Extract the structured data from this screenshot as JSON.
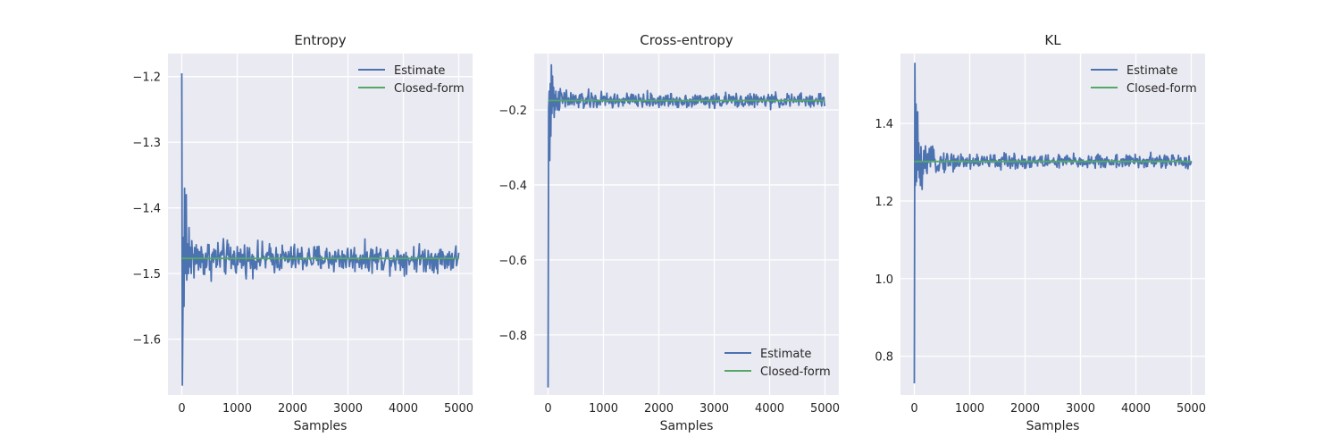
{
  "chart_data": [
    {
      "type": "line",
      "title": "Entropy",
      "xlabel": "Samples",
      "ylabel": "",
      "xlim": [
        -250,
        5250
      ],
      "ylim": [
        -1.685,
        -1.165
      ],
      "xticks": [
        0,
        1000,
        2000,
        3000,
        4000,
        5000
      ],
      "xtick_labels": [
        "0",
        "1000",
        "2000",
        "3000",
        "4000",
        "5000"
      ],
      "yticks": [
        -1.6,
        -1.5,
        -1.4,
        -1.3,
        -1.2
      ],
      "ytick_labels": [
        "−1.6",
        "−1.5",
        "−1.4",
        "−1.3",
        "−1.2"
      ],
      "grid": true,
      "legend": "top-right",
      "n_points": 500,
      "series": [
        {
          "name": "Estimate",
          "values": [
            -1.195,
            -1.67,
            -1.56,
            -1.445,
            -1.55,
            -1.37,
            -1.5,
            -1.46,
            -1.38,
            -1.51,
            -1.47,
            -1.455,
            -1.5,
            -1.43,
            -1.49,
            -1.46,
            -1.48,
            -1.5,
            -1.45,
            -1.47
          ],
          "noise": 0.055,
          "decay": 0.45,
          "color": "#4c72b0"
        },
        {
          "name": "Closed-form",
          "constant": -1.477,
          "color": "#55a868"
        }
      ]
    },
    {
      "type": "line",
      "title": "Cross-entropy",
      "xlabel": "Samples",
      "ylabel": "",
      "xlim": [
        -250,
        5250
      ],
      "ylim": [
        -0.96,
        -0.05
      ],
      "xticks": [
        0,
        1000,
        2000,
        3000,
        4000,
        5000
      ],
      "xtick_labels": [
        "0",
        "1000",
        "2000",
        "3000",
        "4000",
        "5000"
      ],
      "yticks": [
        -0.8,
        -0.6,
        -0.4,
        -0.2
      ],
      "ytick_labels": [
        "−0.8",
        "−0.6",
        "−0.4",
        "−0.2"
      ],
      "grid": true,
      "legend": "bottom-right",
      "n_points": 500,
      "series": [
        {
          "name": "Estimate",
          "values": [
            -0.94,
            -0.2,
            -0.15,
            -0.335,
            -0.13,
            -0.27,
            -0.08,
            -0.21,
            -0.11,
            -0.19,
            -0.14,
            -0.22,
            -0.16,
            -0.2,
            -0.15,
            -0.19,
            -0.17,
            -0.2
          ],
          "noise": 0.05,
          "decay": 0.45,
          "color": "#4c72b0"
        },
        {
          "name": "Closed-form",
          "constant": -0.175,
          "color": "#55a868"
        }
      ]
    },
    {
      "type": "line",
      "title": "KL",
      "xlabel": "Samples",
      "ylabel": "",
      "xlim": [
        -250,
        5250
      ],
      "ylim": [
        0.7,
        1.58
      ],
      "xticks": [
        0,
        1000,
        2000,
        3000,
        4000,
        5000
      ],
      "xtick_labels": [
        "0",
        "1000",
        "2000",
        "3000",
        "4000",
        "5000"
      ],
      "yticks": [
        0.8,
        1.0,
        1.2,
        1.4
      ],
      "ytick_labels": [
        "0.8",
        "1.0",
        "1.2",
        "1.4"
      ],
      "grid": true,
      "legend": "top-right",
      "n_points": 500,
      "series": [
        {
          "name": "Estimate",
          "values": [
            0.73,
            1.555,
            1.24,
            1.45,
            1.25,
            1.33,
            1.43,
            1.28,
            1.35,
            1.26,
            1.32,
            1.24,
            1.34,
            1.27,
            1.23,
            1.3,
            1.27,
            1.33
          ],
          "noise": 0.05,
          "decay": 0.45,
          "color": "#4c72b0"
        },
        {
          "name": "Closed-form",
          "constant": 1.302,
          "color": "#55a868"
        }
      ]
    }
  ]
}
